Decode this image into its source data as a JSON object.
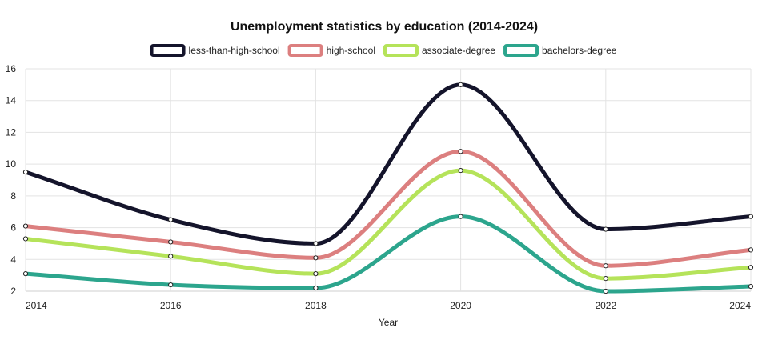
{
  "chart_data": {
    "type": "line",
    "title": "Unemployment statistics by education (2014-2024)",
    "xlabel": "Year",
    "ylabel": "",
    "x": [
      2014,
      2016,
      2018,
      2020,
      2022,
      2024
    ],
    "xticks": [
      "2014",
      "2016",
      "2018",
      "2020",
      "2022",
      "2024"
    ],
    "ylim": [
      2,
      16
    ],
    "yticks": [
      2,
      4,
      6,
      8,
      10,
      12,
      14,
      16
    ],
    "grid": true,
    "legend_position": "top",
    "series": [
      {
        "name": "less-than-high-school",
        "color": "#14142b",
        "values": [
          9.5,
          6.5,
          5.0,
          15.0,
          5.9,
          6.7
        ]
      },
      {
        "name": "high-school",
        "color": "#dc7f7f",
        "values": [
          6.1,
          5.1,
          4.1,
          10.8,
          3.6,
          4.6
        ]
      },
      {
        "name": "associate-degree",
        "color": "#b5e35a",
        "values": [
          5.3,
          4.2,
          3.1,
          9.6,
          2.8,
          3.5
        ]
      },
      {
        "name": "bachelors-degree",
        "color": "#2ca58d",
        "values": [
          3.1,
          2.4,
          2.2,
          6.7,
          2.0,
          2.3
        ]
      }
    ]
  }
}
